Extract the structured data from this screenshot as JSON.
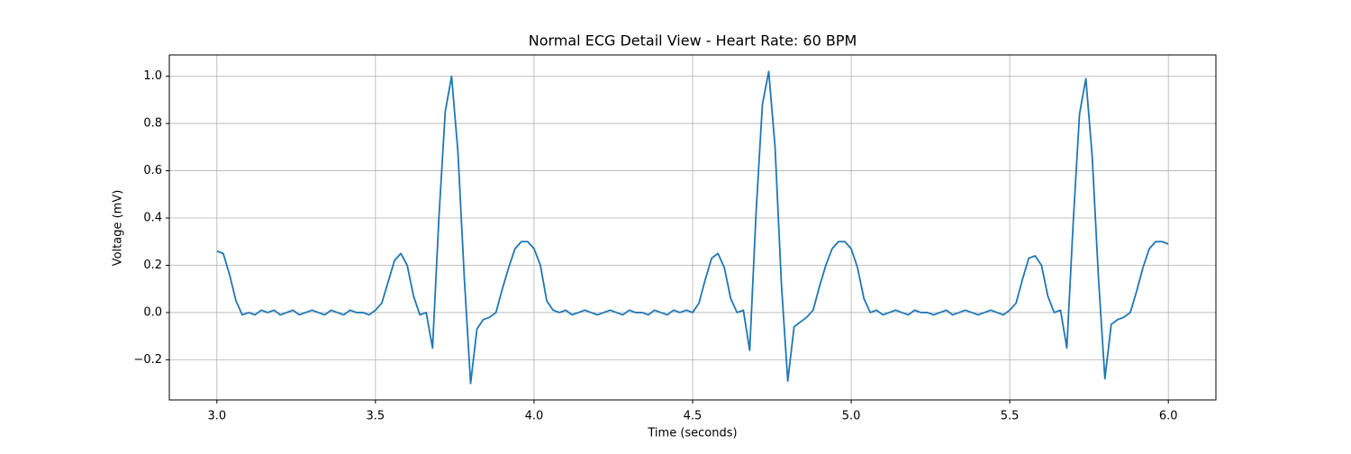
{
  "chart_data": {
    "type": "line",
    "title": "Normal ECG Detail View - Heart Rate: 60 BPM",
    "xlabel": "Time (seconds)",
    "ylabel": "Voltage (mV)",
    "color": "#1f77b4",
    "grid": true,
    "xlim": [
      2.85,
      6.15
    ],
    "ylim": [
      -0.37,
      1.09
    ],
    "xticks": [
      {
        "value": 3,
        "label": "3.0"
      },
      {
        "value": 3.5,
        "label": "3.5"
      },
      {
        "value": 4,
        "label": "4.0"
      },
      {
        "value": 4.5,
        "label": "4.5"
      },
      {
        "value": 5,
        "label": "5.0"
      },
      {
        "value": 5.5,
        "label": "5.5"
      },
      {
        "value": 6,
        "label": "6.0"
      }
    ],
    "yticks": [
      {
        "value": -0.2,
        "label": "−0.2"
      },
      {
        "value": 0,
        "label": "0.0"
      },
      {
        "value": 0.2,
        "label": "0.2"
      },
      {
        "value": 0.4,
        "label": "0.4"
      },
      {
        "value": 0.6,
        "label": "0.6"
      },
      {
        "value": 0.8,
        "label": "0.8"
      },
      {
        "value": 1,
        "label": "1.0"
      }
    ],
    "x": [
      3,
      3.02,
      3.04,
      3.06,
      3.08,
      3.1,
      3.12,
      3.14,
      3.16,
      3.18,
      3.2,
      3.22,
      3.24,
      3.26,
      3.28,
      3.3,
      3.32,
      3.34,
      3.36,
      3.38,
      3.4,
      3.42,
      3.44,
      3.46,
      3.48,
      3.5,
      3.52,
      3.54,
      3.56,
      3.58,
      3.6,
      3.62,
      3.64,
      3.66,
      3.68,
      3.7,
      3.72,
      3.74,
      3.76,
      3.78,
      3.8,
      3.82,
      3.84,
      3.86,
      3.88,
      3.9,
      3.92,
      3.94,
      3.96,
      3.98,
      4,
      4.02,
      4.04,
      4.06,
      4.08,
      4.1,
      4.12,
      4.14,
      4.16,
      4.18,
      4.2,
      4.22,
      4.24,
      4.26,
      4.28,
      4.3,
      4.32,
      4.34,
      4.36,
      4.38,
      4.4,
      4.42,
      4.44,
      4.46,
      4.48,
      4.5,
      4.52,
      4.54,
      4.56,
      4.58,
      4.6,
      4.62,
      4.64,
      4.66,
      4.68,
      4.7,
      4.72,
      4.74,
      4.76,
      4.78,
      4.8,
      4.82,
      4.84,
      4.86,
      4.88,
      4.9,
      4.92,
      4.94,
      4.96,
      4.98,
      5,
      5.02,
      5.04,
      5.06,
      5.08,
      5.1,
      5.12,
      5.14,
      5.16,
      5.18,
      5.2,
      5.22,
      5.24,
      5.26,
      5.28,
      5.3,
      5.32,
      5.34,
      5.36,
      5.38,
      5.4,
      5.42,
      5.44,
      5.46,
      5.48,
      5.5,
      5.52,
      5.54,
      5.56,
      5.58,
      5.6,
      5.62,
      5.64,
      5.66,
      5.68,
      5.7,
      5.72,
      5.74,
      5.76,
      5.78,
      5.8,
      5.82,
      5.84,
      5.86,
      5.88,
      5.9,
      5.92,
      5.94,
      5.96,
      5.98,
      6
    ],
    "values": [
      0.26,
      0.25,
      0.16,
      0.05,
      -0.01,
      0,
      -0.01,
      0.01,
      0,
      0.01,
      -0.01,
      0,
      0.01,
      -0.01,
      0,
      0.01,
      0,
      -0.01,
      0.01,
      0,
      -0.01,
      0.01,
      0,
      0,
      -0.01,
      0.01,
      0.04,
      0.13,
      0.22,
      0.25,
      0.2,
      0.07,
      -0.01,
      0,
      -0.15,
      0.4,
      0.85,
      1.0,
      0.68,
      0.15,
      -0.3,
      -0.07,
      -0.03,
      -0.02,
      0,
      0.1,
      0.19,
      0.27,
      0.3,
      0.3,
      0.27,
      0.2,
      0.05,
      0.01,
      0,
      0.01,
      -0.01,
      0,
      0.01,
      0,
      -0.01,
      0,
      0.01,
      0,
      -0.01,
      0.01,
      0,
      0,
      -0.01,
      0.01,
      0,
      -0.01,
      0.01,
      0,
      0.01,
      0,
      0.04,
      0.14,
      0.23,
      0.25,
      0.19,
      0.06,
      0,
      0.01,
      -0.16,
      0.42,
      0.88,
      1.02,
      0.7,
      0.12,
      -0.29,
      -0.06,
      -0.04,
      -0.02,
      0.01,
      0.11,
      0.2,
      0.27,
      0.3,
      0.3,
      0.27,
      0.19,
      0.06,
      0,
      0.01,
      -0.01,
      0,
      0.01,
      0,
      -0.01,
      0.01,
      0,
      0,
      -0.01,
      0,
      0.01,
      -0.01,
      0,
      0.01,
      0,
      -0.01,
      0,
      0.01,
      0,
      -0.01,
      0.01,
      0.04,
      0.14,
      0.23,
      0.24,
      0.2,
      0.07,
      0,
      0.01,
      -0.15,
      0.38,
      0.84,
      0.99,
      0.66,
      0.14,
      -0.28,
      -0.05,
      -0.03,
      -0.02,
      0,
      0.09,
      0.19,
      0.27,
      0.3,
      0.3,
      0.29
    ]
  }
}
